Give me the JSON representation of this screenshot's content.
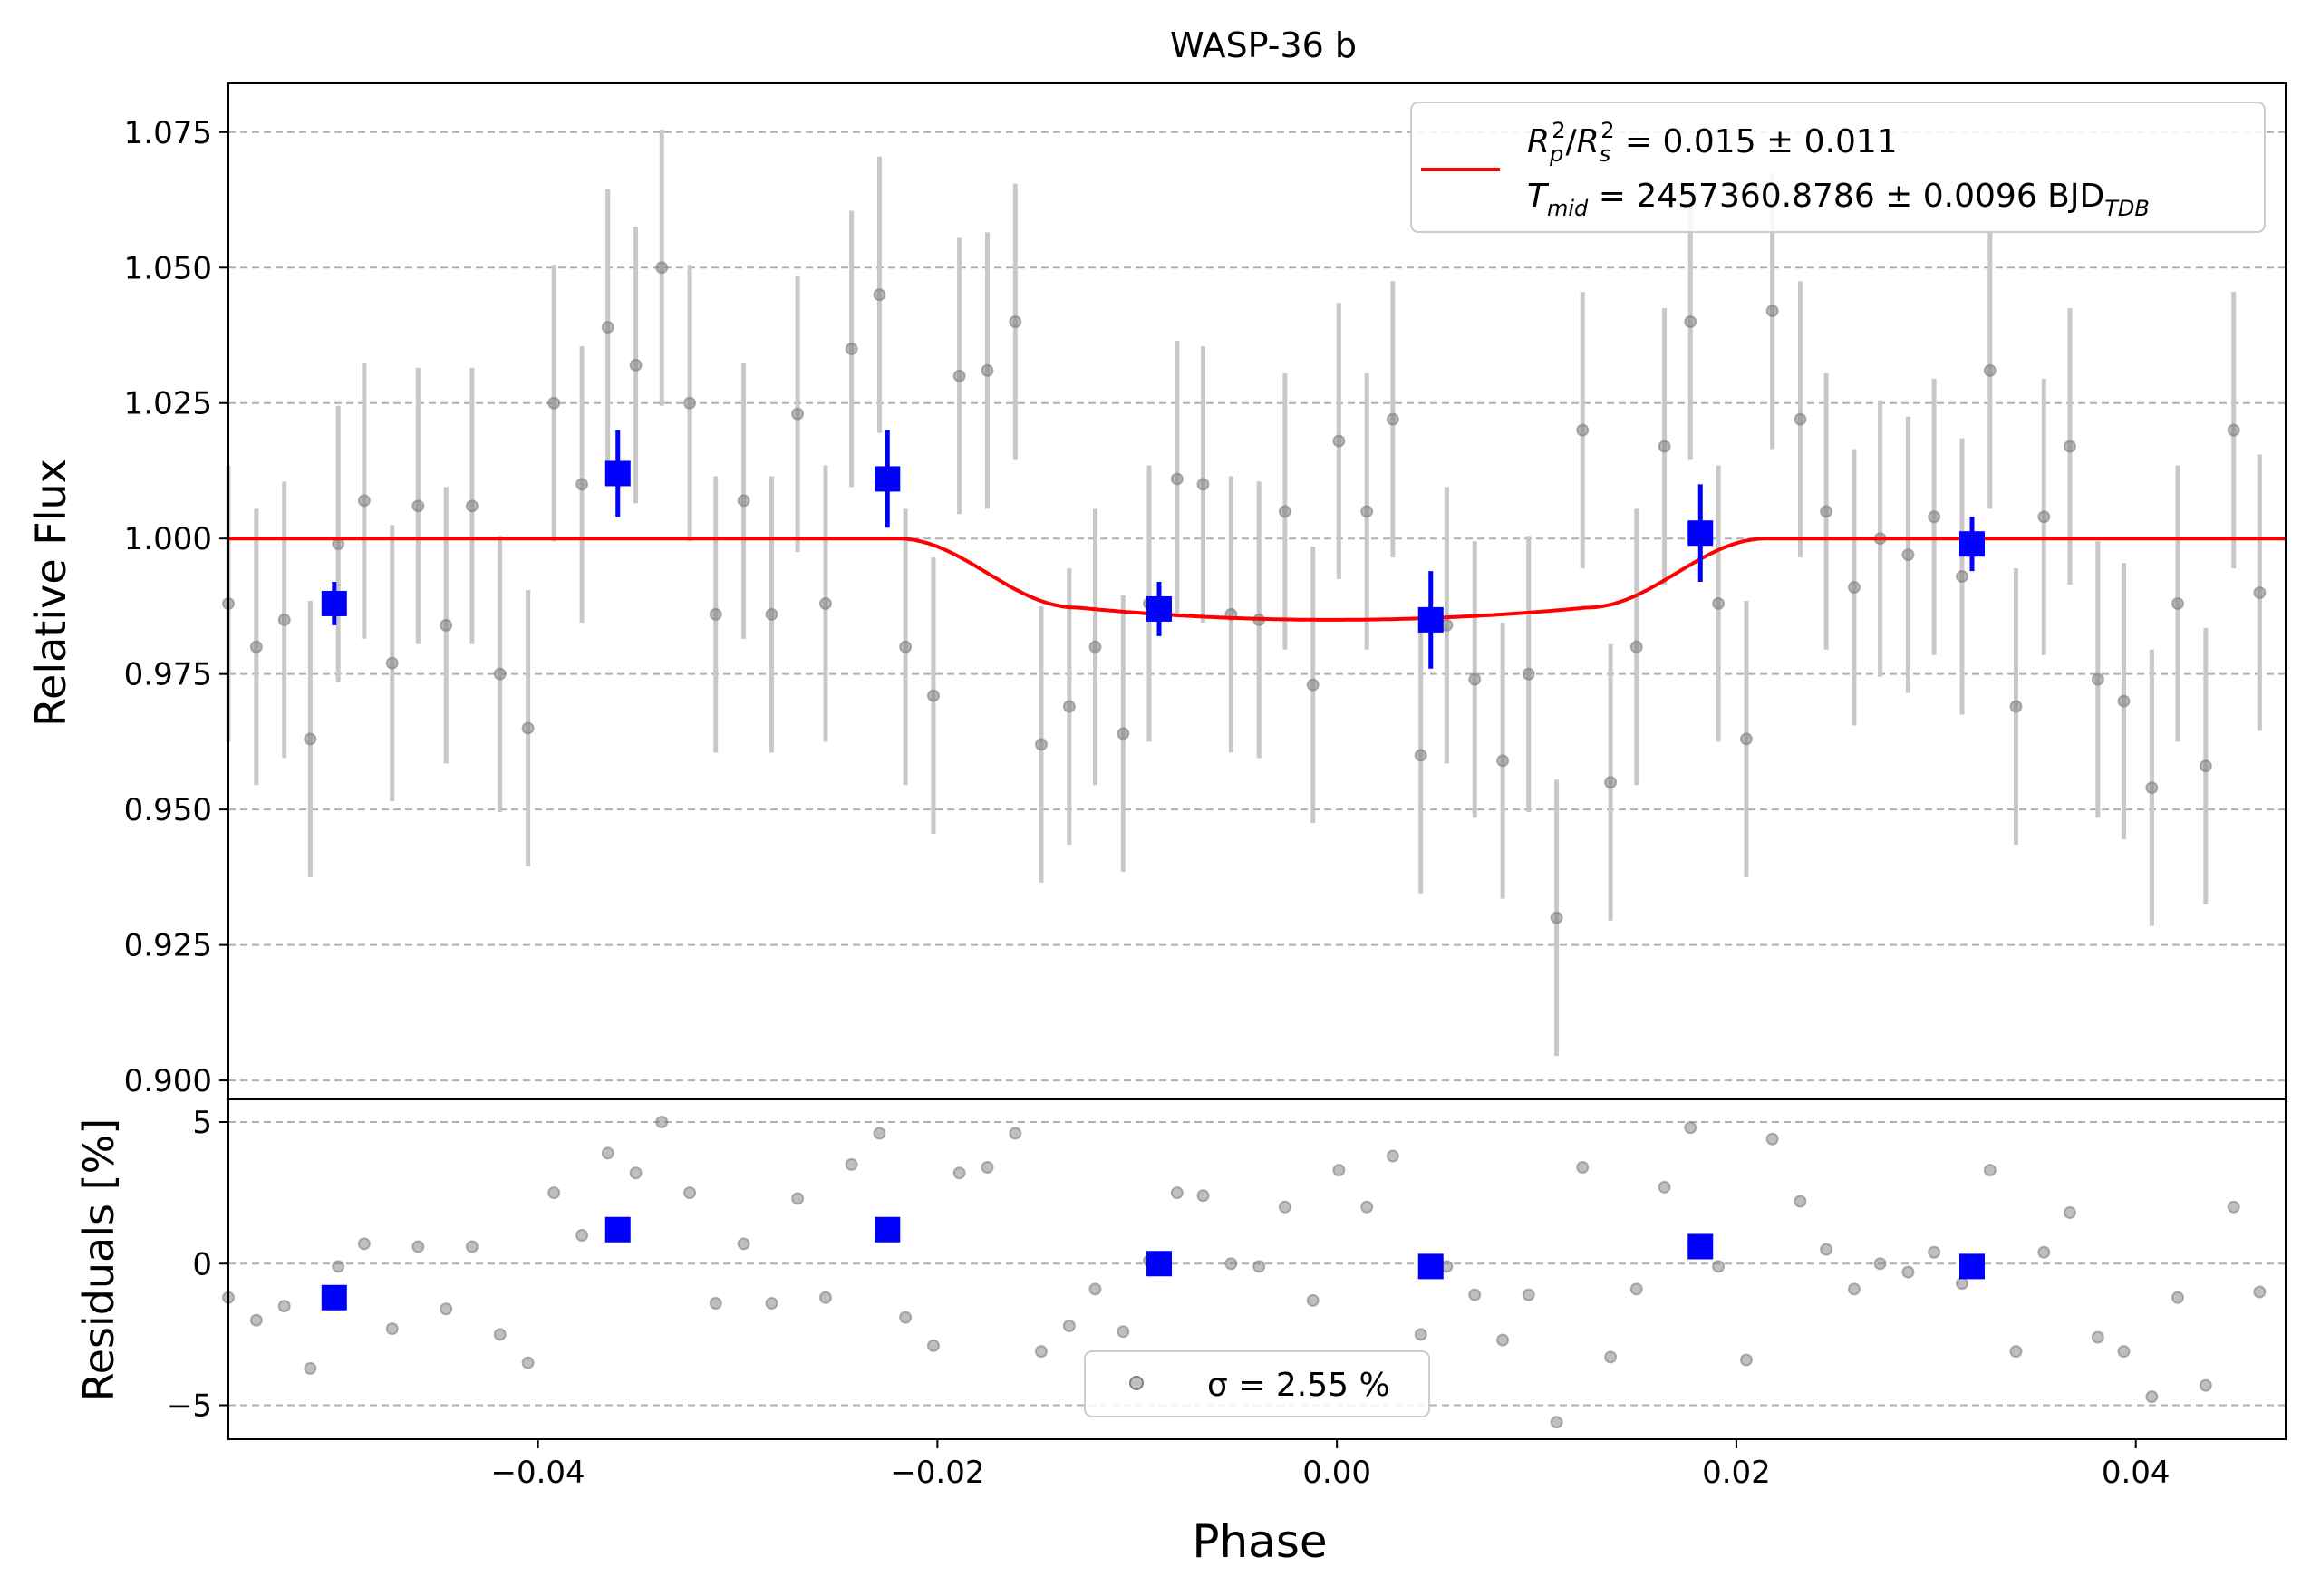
{
  "chart_data": [
    {
      "type": "scatter",
      "title": "WASP-36 b",
      "xlabel": "",
      "ylabel": "Relative Flux",
      "xlim": [
        -0.0555,
        0.0475
      ],
      "ylim": [
        0.8965,
        1.084
      ],
      "xticks": [
        -0.04,
        -0.02,
        0.0,
        0.02,
        0.04
      ],
      "yticks": [
        "0.900",
        "0.925",
        "0.950",
        "0.975",
        "1.000",
        "1.025",
        "1.050",
        "1.075"
      ],
      "grid": "y-dashed",
      "legend": {
        "position": "top-right",
        "line1": "R_p^2/R_s^2 = 0.015 ± 0.011",
        "line2": "T_mid = 2457360.8786 ± 0.0096 BJD_TDB"
      },
      "colors": {
        "raw": "#808080",
        "errorbar": "#c8c8c8",
        "binned": "#0000ff",
        "model": "#ff0000"
      },
      "series": [
        {
          "kind": "raw",
          "x": [
            -0.0555,
            -0.0541,
            -0.0527,
            -0.0514,
            -0.05,
            -0.0487,
            -0.0473,
            -0.046,
            -0.0446,
            -0.0433,
            -0.0419,
            -0.0405,
            -0.0392,
            -0.0378,
            -0.0365,
            -0.0351,
            -0.0338,
            -0.0324,
            -0.0311,
            -0.0297,
            -0.0283,
            -0.027,
            -0.0256,
            -0.0243,
            -0.0229,
            -0.0216,
            -0.0202,
            -0.0189,
            -0.0175,
            -0.0161,
            -0.0148,
            -0.0134,
            -0.0121,
            -0.0107,
            -0.0094,
            -0.008,
            -0.0067,
            -0.0053,
            -0.0039,
            -0.0026,
            -0.0012,
            0.0001,
            0.0015,
            0.0028,
            0.0042,
            0.0055,
            0.0069,
            0.0083,
            0.0096,
            0.011,
            0.0123,
            0.0137,
            0.015,
            0.0164,
            0.0177,
            0.0191,
            0.0205,
            0.0218,
            0.0232,
            0.0245,
            0.0259,
            0.0272,
            0.0286,
            0.0299,
            0.0313,
            0.0327,
            0.034,
            0.0354,
            0.0367,
            0.0381,
            0.0394,
            0.0408,
            0.0421,
            0.0435,
            0.0449,
            0.0462,
            0.0476
          ],
          "y": [
            0.988,
            0.98,
            0.985,
            0.963,
            0.999,
            1.007,
            0.977,
            1.006,
            0.984,
            1.006,
            0.975,
            0.965,
            1.025,
            1.01,
            1.039,
            1.032,
            1.05,
            1.025,
            0.986,
            1.007,
            0.986,
            1.023,
            0.988,
            1.035,
            1.045,
            0.98,
            0.971,
            1.03,
            1.031,
            1.04,
            0.962,
            0.969,
            0.98,
            0.964,
            0.988,
            1.011,
            1.01,
            0.986,
            0.985,
            1.005,
            0.973,
            1.018,
            1.005,
            1.022,
            0.96,
            0.984,
            0.974,
            0.959,
            0.975,
            0.93,
            1.02,
            0.955,
            0.98,
            1.017,
            1.04,
            0.988,
            0.963,
            1.042,
            1.022,
            1.005,
            0.991,
            1.0,
            0.997,
            1.004,
            0.993,
            1.031,
            0.969,
            1.004,
            1.017,
            0.974,
            0.97,
            0.954,
            0.988,
            0.958,
            1.02,
            0.99,
            0.976
          ],
          "yerr": 0.0255,
          "residual_pct": [
            -1.2,
            -2.0,
            -1.5,
            -3.7,
            -0.1,
            0.7,
            -2.3,
            0.6,
            -1.6,
            0.6,
            -2.5,
            -3.5,
            2.5,
            1.0,
            3.9,
            3.2,
            5.0,
            2.5,
            -1.4,
            0.7,
            -1.4,
            2.3,
            -1.2,
            3.5,
            4.6,
            -1.9,
            -2.9,
            3.2,
            3.4,
            4.6,
            -3.1,
            -2.2,
            -0.9,
            -2.4,
            0.1,
            2.5,
            2.4,
            0.0,
            -0.1,
            2.0,
            -1.3,
            3.3,
            2.0,
            3.8,
            -2.5,
            -0.1,
            -1.1,
            -2.7,
            -1.1,
            -5.6,
            3.4,
            -3.3,
            -0.9,
            2.7,
            4.8,
            -0.1,
            -3.4,
            4.4,
            2.2,
            0.5,
            -0.9,
            0.0,
            -0.3,
            0.4,
            -0.7,
            3.3,
            -3.1,
            0.4,
            1.8,
            -2.6,
            -3.1,
            -4.7,
            -1.2,
            -4.3,
            2.0,
            -1.0,
            -2.5
          ]
        },
        {
          "kind": "binned",
          "x": [
            -0.0502,
            -0.036,
            -0.0225,
            -0.0089,
            0.0047,
            0.0182,
            0.0318
          ],
          "y": [
            0.988,
            1.012,
            1.011,
            0.987,
            0.985,
            1.001,
            0.999
          ],
          "yerr": [
            0.004,
            0.008,
            0.009,
            0.005,
            0.009,
            0.009,
            0.005
          ],
          "residual_pct": [
            -1.2,
            1.2,
            1.2,
            0.0,
            -0.1,
            0.6,
            -0.1
          ]
        },
        {
          "kind": "model",
          "depth": 0.015,
          "t1": -0.022,
          "t2": -0.013,
          "t3": 0.0125,
          "t4": 0.0215
        }
      ]
    },
    {
      "type": "scatter",
      "xlabel": "Phase",
      "ylabel": "Residuals [%]",
      "xlim": [
        -0.0555,
        0.0475
      ],
      "ylim": [
        -6.2,
        5.8
      ],
      "xticks": [
        "−0.04",
        "−0.02",
        "0.00",
        "0.02",
        "0.04"
      ],
      "yticks": [
        "−5",
        "0",
        "5"
      ],
      "grid": "y-dashed",
      "legend": {
        "position": "lower-center",
        "label": "σ = 2.55 %"
      }
    }
  ]
}
